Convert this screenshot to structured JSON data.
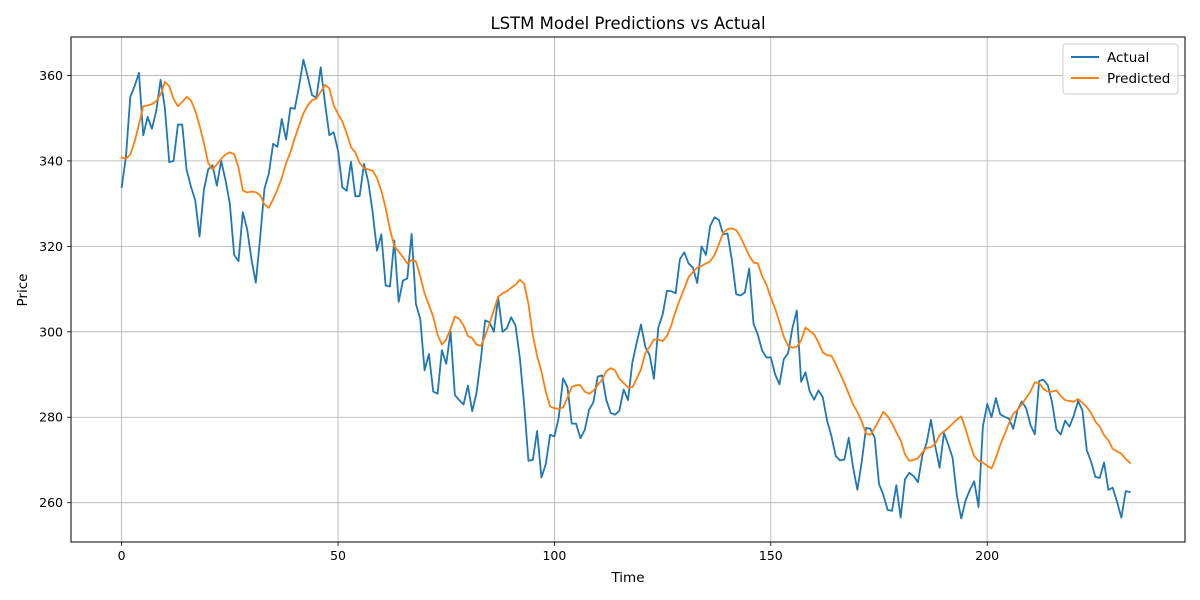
{
  "chart_data": {
    "type": "line",
    "title": "LSTM Model Predictions vs Actual",
    "xlabel": "Time",
    "ylabel": "Price",
    "xlim": [
      -11.7,
      245.7
    ],
    "ylim": [
      250.8,
      369.0
    ],
    "xticks": [
      0,
      50,
      100,
      150,
      200
    ],
    "yticks": [
      260,
      280,
      300,
      320,
      340,
      360
    ],
    "xtick_labels": [
      "0",
      "50",
      "100",
      "150",
      "200"
    ],
    "ytick_labels": [
      "260",
      "280",
      "300",
      "320",
      "340",
      "360"
    ],
    "grid": true,
    "legend": "top-right",
    "series": [
      {
        "name": "Actual",
        "color": "#1f77b4",
        "values": [
          333.8,
          341.0,
          355.0,
          357.5,
          360.6,
          346.0,
          350.3,
          347.5,
          351.7,
          359.0,
          352.3,
          339.7,
          340.0,
          348.5,
          348.5,
          338.0,
          334.0,
          330.8,
          322.3,
          333.2,
          338.0,
          339.0,
          334.2,
          340.0,
          335.5,
          330.0,
          318.0,
          316.5,
          328.0,
          324.0,
          317.0,
          311.5,
          322.0,
          333.5,
          337.0,
          344.0,
          343.3,
          349.8,
          345.0,
          352.4,
          352.2,
          357.5,
          363.7,
          359.7,
          355.4,
          354.8,
          361.9,
          353.4,
          346.0,
          346.7,
          342.4,
          333.8,
          333.0,
          339.8,
          331.7,
          331.8,
          339.3,
          335.0,
          328.0,
          319.0,
          322.8,
          310.8,
          310.6,
          321.4,
          307.0,
          312.0,
          312.5,
          322.9,
          306.5,
          303.0,
          291.0,
          294.8,
          286.0,
          285.5,
          295.7,
          292.5,
          300.0,
          285.2,
          284.0,
          283.0,
          287.4,
          281.4,
          285.7,
          293.6,
          302.7,
          302.2,
          300.0,
          308.0,
          300.0,
          300.8,
          303.4,
          301.5,
          294.0,
          283.0,
          269.8,
          270.0,
          276.8,
          265.9,
          269.0,
          275.9,
          275.5,
          280.0,
          289.1,
          287.1,
          278.5,
          278.5,
          275.1,
          277.0,
          281.7,
          283.5,
          289.5,
          289.8,
          284.0,
          281.0,
          280.6,
          281.5,
          286.5,
          284.0,
          292.8,
          297.4,
          301.7,
          296.5,
          294.5,
          289.0,
          301.0,
          304.0,
          309.6,
          309.5,
          309.0,
          317.0,
          318.6,
          316.0,
          315.0,
          311.4,
          320.0,
          318.0,
          324.8,
          326.8,
          326.2,
          322.8,
          323.0,
          316.8,
          308.8,
          308.5,
          309.2,
          314.8,
          301.9,
          299.3,
          295.6,
          294.0,
          294.0,
          290.0,
          287.7,
          293.6,
          295.0,
          300.9,
          305.0,
          288.3,
          290.5,
          286.0,
          284.1,
          286.3,
          284.7,
          279.2,
          275.6,
          270.9,
          269.9,
          270.1,
          275.2,
          268.3,
          263.0,
          269.5,
          277.5,
          277.3,
          275.2,
          264.4,
          261.8,
          258.3,
          258.1,
          264.1,
          256.5,
          265.5,
          267.0,
          266.2,
          264.8,
          271.0,
          274.0,
          279.4,
          273.2,
          268.2,
          276.3,
          273.6,
          270.5,
          261.6,
          256.3,
          260.5,
          263.0,
          265.0,
          259.0,
          277.8,
          283.1,
          280.0,
          284.5,
          280.7,
          280.1,
          279.7,
          277.3,
          281.6,
          283.7,
          282.1,
          278.2,
          276.0,
          288.5,
          288.8,
          287.5,
          283.4,
          277.1,
          276.0,
          279.2,
          277.8,
          280.4,
          283.8,
          281.6,
          272.3,
          269.6,
          266.0,
          265.8,
          269.4,
          263.0,
          263.5,
          260.2,
          256.5,
          262.7,
          262.5
        ]
      },
      {
        "name": "Predicted",
        "color": "#ff7f0e",
        "values": [
          340.8,
          340.5,
          341.5,
          344.5,
          348.5,
          352.8,
          353.0,
          353.3,
          354.0,
          355.5,
          358.5,
          357.5,
          354.5,
          352.8,
          353.8,
          355.0,
          354.2,
          351.8,
          348.3,
          344.2,
          339.5,
          338.0,
          339.2,
          340.5,
          341.5,
          342.0,
          341.6,
          338.5,
          333.1,
          332.6,
          332.8,
          332.7,
          332.0,
          329.8,
          329.0,
          331.0,
          333.3,
          336.0,
          339.5,
          342.0,
          345.3,
          348.3,
          351.1,
          353.0,
          354.2,
          354.6,
          356.2,
          357.8,
          357.0,
          353.0,
          351.0,
          349.2,
          346.5,
          343.2,
          342.0,
          339.5,
          338.3,
          338.0,
          337.7,
          336.0,
          333.0,
          329.0,
          324.0,
          320.0,
          318.8,
          317.5,
          316.0,
          316.8,
          316.5,
          313.0,
          309.0,
          306.3,
          303.5,
          299.3,
          297.0,
          298.2,
          300.7,
          303.6,
          303.0,
          301.5,
          299.0,
          298.5,
          297.0,
          296.7,
          299.0,
          302.0,
          305.0,
          308.2,
          309.0,
          309.5,
          310.3,
          311.0,
          312.2,
          311.3,
          306.5,
          299.2,
          294.3,
          290.7,
          286.0,
          282.5,
          282.1,
          282.0,
          282.3,
          284.5,
          287.1,
          287.5,
          287.5,
          286.0,
          285.5,
          286.2,
          287.5,
          288.8,
          290.8,
          291.5,
          291.0,
          289.0,
          288.0,
          287.0,
          287.0,
          289.0,
          291.2,
          295.0,
          296.5,
          298.2,
          298.2,
          297.8,
          299.0,
          301.5,
          304.8,
          307.6,
          310.1,
          312.8,
          314.0,
          315.0,
          315.4,
          316.0,
          316.5,
          318.0,
          320.5,
          323.2,
          324.0,
          324.2,
          323.8,
          322.2,
          320.0,
          317.8,
          316.2,
          316.0,
          313.0,
          311.0,
          308.0,
          305.4,
          302.2,
          298.8,
          296.7,
          296.3,
          296.5,
          298.0,
          301.0,
          300.2,
          299.4,
          297.5,
          295.2,
          294.5,
          294.4,
          292.4,
          290.2,
          288.0,
          285.5,
          283.0,
          281.2,
          279.0,
          276.2,
          275.9,
          277.5,
          279.3,
          281.3,
          280.2,
          278.6,
          276.5,
          274.6,
          271.3,
          269.8,
          270.0,
          270.4,
          271.8,
          272.8,
          273.0,
          273.8,
          275.8,
          276.7,
          277.5,
          278.5,
          279.5,
          280.2,
          277.3,
          273.8,
          270.9,
          269.8,
          269.4,
          268.6,
          268.0,
          270.5,
          273.5,
          276.0,
          278.5,
          280.8,
          281.7,
          283.0,
          284.5,
          286.0,
          288.2,
          288.0,
          286.6,
          286.0,
          286.0,
          286.3,
          285.0,
          284.0,
          283.8,
          283.6,
          284.3,
          283.4,
          282.4,
          281.0,
          279.0,
          277.8,
          275.8,
          274.6,
          272.6,
          272.0,
          271.5,
          270.2,
          269.3
        ]
      }
    ]
  }
}
